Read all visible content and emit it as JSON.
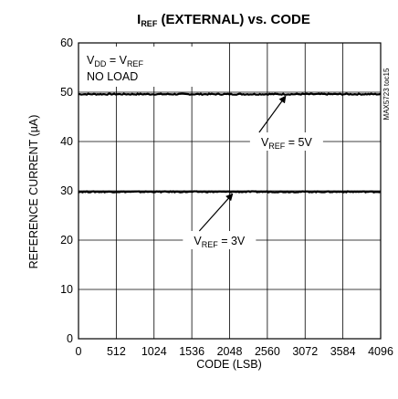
{
  "chart_data": {
    "type": "line",
    "title": {
      "main": "I",
      "sub": "REF",
      "rest": " (EXTERNAL) vs. CODE"
    },
    "xlabel": "CODE (LSB)",
    "ylabel": "REFERENCE CURRENT (µA)",
    "xlim": [
      0,
      4096
    ],
    "ylim": [
      0,
      60
    ],
    "xticks": [
      0,
      512,
      1024,
      1536,
      2048,
      2560,
      3072,
      3584,
      4096
    ],
    "yticks": [
      0,
      10,
      20,
      30,
      40,
      50,
      60
    ],
    "grid": true,
    "side_label": "MAX5723 toc15",
    "condition": {
      "line1": {
        "a": "V",
        "a_sub": "DD",
        "b": " = V",
        "b_sub": "REF"
      },
      "line2": "NO LOAD"
    },
    "series": [
      {
        "name": "VREF = 5V",
        "x": [
          0,
          4096
        ],
        "y": [
          49.6,
          49.6
        ]
      },
      {
        "name": "VREF = 3V",
        "x": [
          0,
          4096
        ],
        "y": [
          29.8,
          29.8
        ]
      }
    ],
    "annotations": [
      {
        "prefix": "V",
        "sub": "REF",
        "suffix": " = 5V",
        "label_x": 2820,
        "label_y": 40,
        "arrow_x": 2800,
        "arrow_y": 49.6
      },
      {
        "prefix": "V",
        "sub": "REF",
        "suffix": " = 3V",
        "label_x": 1910,
        "label_y": 20,
        "arrow_x": 2080,
        "arrow_y": 29.8
      }
    ]
  }
}
